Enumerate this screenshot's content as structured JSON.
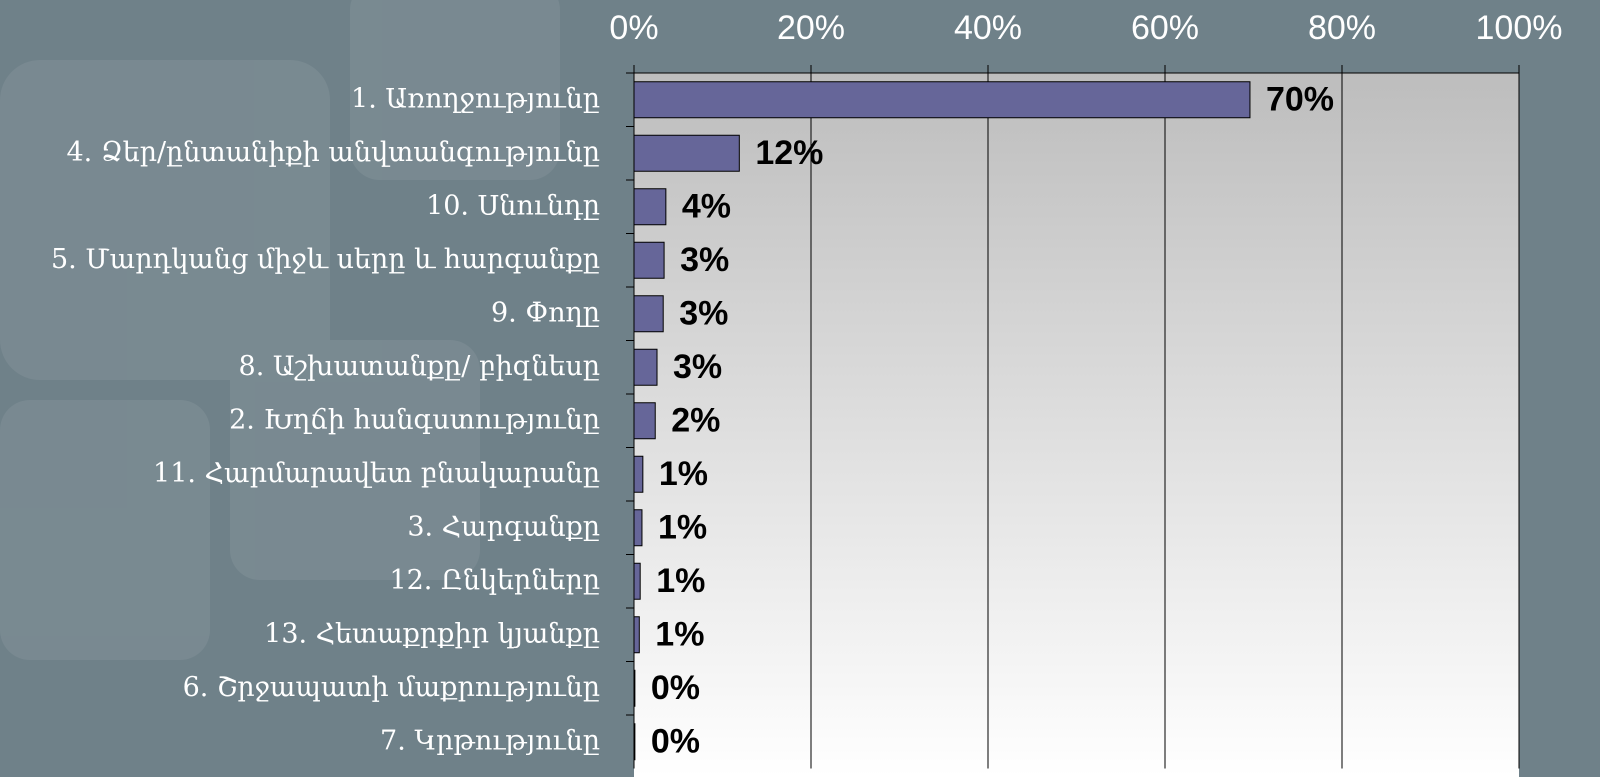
{
  "chart_data": {
    "type": "bar",
    "orientation": "horizontal",
    "categories": [
      "1. Առողջությունը",
      "4. Ձեր/ընտանիքի անվտանգությունը",
      "10. Սնունդը",
      "5. Մարդկանց միջև սերը և հարգանքը",
      "9. Փողը",
      "8. Աշխատանքը/ բիզնեսը",
      "2. Խղճի հանգստությունը",
      "11. Հարմարավետ բնակարանը",
      "3. Հարգանքը",
      "12. Ընկերները",
      "13. Հետաքրքիր կյանքը",
      "6. Շրջապատի մաքրությունը",
      "7. Կրթությունը"
    ],
    "values": [
      69.6,
      11.9,
      3.6,
      3.4,
      3.3,
      2.6,
      2.4,
      1.0,
      0.9,
      0.7,
      0.6,
      0.1,
      0.1
    ],
    "value_labels": [
      "70%",
      "12%",
      "4%",
      "3%",
      "3%",
      "3%",
      "2%",
      "1%",
      "1%",
      "1%",
      "1%",
      "0%",
      "0%"
    ],
    "color": "#666699",
    "xlim": [
      0,
      100
    ],
    "xticks": [
      {
        "value": 0,
        "label": "0%"
      },
      {
        "value": 20,
        "label": "20%"
      },
      {
        "value": 40,
        "label": "40%"
      },
      {
        "value": 60,
        "label": "60%"
      },
      {
        "value": 80,
        "label": "80%"
      },
      {
        "value": 100,
        "label": "100%"
      }
    ],
    "grid": true
  }
}
